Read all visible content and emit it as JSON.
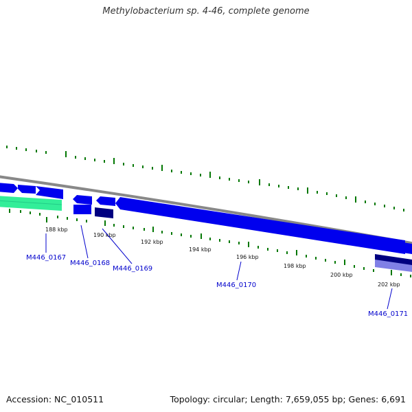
{
  "title": "Methylobacterium sp. 4-46, complete genome",
  "accession": "Accession: NC_010511",
  "summary": "Topology: circular; Length: 7,659,055 bp; Genes: 6,691",
  "tick_labels": [
    "188 kbp",
    "190 kbp",
    "192 kbp",
    "194 kbp",
    "196 kbp",
    "198 kbp",
    "200 kbp",
    "202 kbp"
  ],
  "gene_labels": [
    "M446_0167",
    "M446_0168",
    "M446_0169",
    "M446_0170",
    "M446_0171"
  ],
  "colors": {
    "cds": "#0000ee",
    "cds_dark": "#000080",
    "rna": "#33ee99",
    "backbone": "#888888",
    "gc_ticks": "#007700",
    "label": "#0000cc",
    "highlight": "#8080e6"
  }
}
